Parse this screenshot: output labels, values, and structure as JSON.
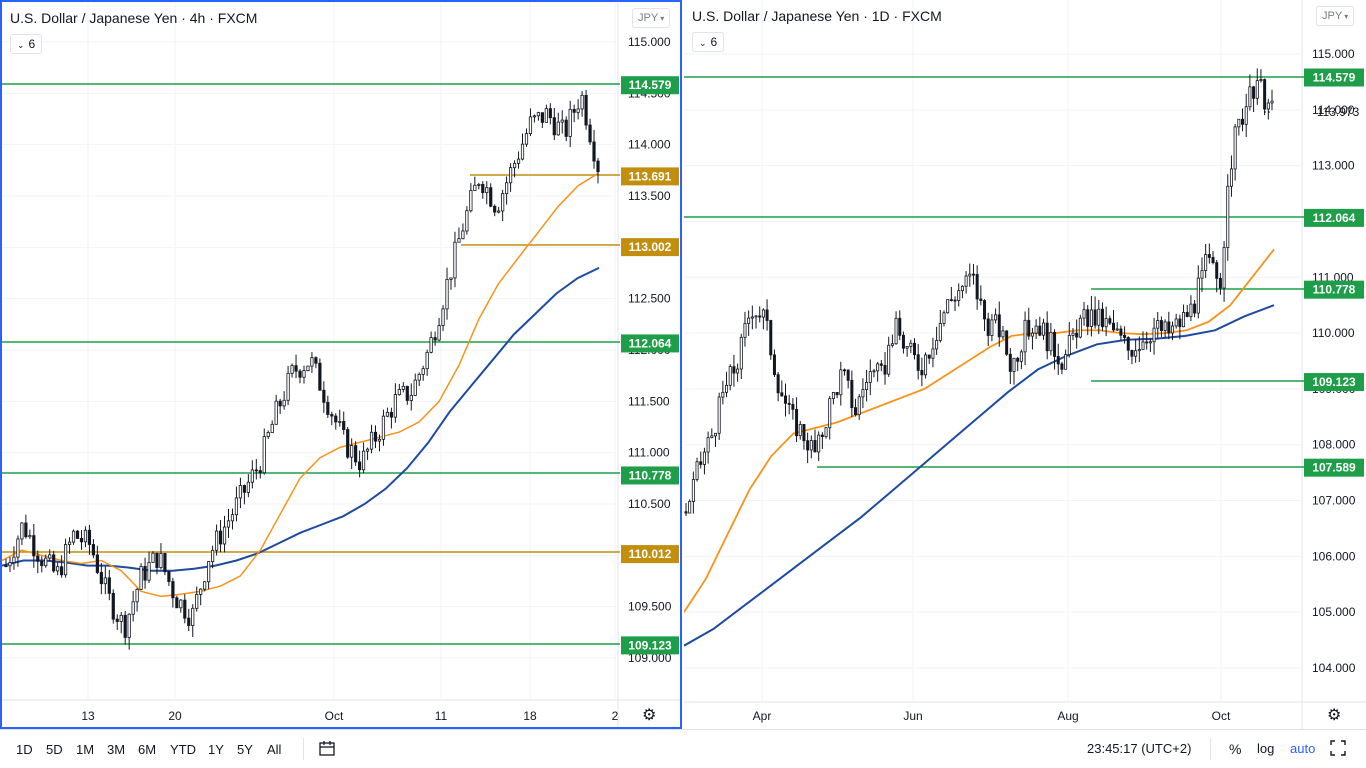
{
  "left_panel": {
    "title": "U.S. Dollar / Japanese Yen · 4h · FXCM",
    "indicator_count": "6",
    "currency": "JPY",
    "price_axis_labels": [
      "115.000",
      "114.500",
      "114.000",
      "113.500",
      "113.000",
      "112.500",
      "112.000",
      "111.500",
      "111.000",
      "110.500",
      "110.000",
      "109.500",
      "109.000"
    ],
    "time_axis_labels": [
      "13",
      "20",
      "Oct",
      "11",
      "18",
      "2"
    ],
    "level_tags": [
      {
        "label": "114.579",
        "color": "#1e9e48"
      },
      {
        "label": "113.691",
        "color": "#c28e0e"
      },
      {
        "label": "113.002",
        "color": "#c28e0e"
      },
      {
        "label": "112.064",
        "color": "#1e9e48"
      },
      {
        "label": "110.778",
        "color": "#1e9e48"
      },
      {
        "label": "110.012",
        "color": "#c28e0e"
      },
      {
        "label": "109.123",
        "color": "#1e9e48"
      }
    ]
  },
  "right_panel": {
    "title": "U.S. Dollar / Japanese Yen · 1D · FXCM",
    "indicator_count": "6",
    "currency": "JPY",
    "price_axis_labels": [
      "115.000",
      "114.000",
      "113.000",
      "112.000",
      "111.000",
      "110.000",
      "109.000",
      "108.000",
      "107.000",
      "106.000",
      "105.000",
      "104.000"
    ],
    "time_axis_labels": [
      "Apr",
      "Jun",
      "Aug",
      "Oct"
    ],
    "last_price": "113.973",
    "level_tags": [
      {
        "label": "114.579",
        "color": "#1e9e48"
      },
      {
        "label": "112.064",
        "color": "#1e9e48"
      },
      {
        "label": "110.778",
        "color": "#1e9e48"
      },
      {
        "label": "109.123",
        "color": "#1e9e48"
      },
      {
        "label": "107.589",
        "color": "#1e9e48"
      }
    ]
  },
  "toolbar": {
    "timeframes": [
      "1D",
      "5D",
      "1M",
      "3M",
      "6M",
      "YTD",
      "1Y",
      "5Y",
      "All"
    ],
    "clock": "23:45:17 (UTC+2)",
    "percent": "%",
    "log": "log",
    "auto": "auto"
  },
  "colors": {
    "green_level": "#1e9e48",
    "gold_level": "#c28e0e",
    "ma_fast": "#f7931a",
    "ma_slow": "#1c4ba0",
    "accent": "#2962ff"
  },
  "chart_data": [
    {
      "type": "line",
      "title": "U.S. Dollar / Japanese Yen · 4h · FXCM",
      "ylim": [
        108.5,
        115.45
      ],
      "x_ticks": [
        "13",
        "20",
        "Oct",
        "11",
        "18",
        "2"
      ],
      "series": [
        {
          "values": [
            109.9,
            110.3,
            110.0,
            109.8,
            110.2,
            110.1,
            109.6,
            109.3,
            109.8,
            110.0,
            109.6,
            109.4,
            110.0,
            110.3,
            110.6,
            110.9,
            111.4,
            111.8,
            111.9,
            111.5,
            111.1,
            110.9,
            111.2,
            111.5,
            111.6,
            112.0,
            112.6,
            113.2,
            113.7,
            113.4,
            113.8,
            114.2,
            114.3,
            114.1,
            114.5,
            113.8
          ]
        },
        {
          "values": [
            109.95,
            110.05,
            110.0,
            109.95,
            109.92,
            109.95,
            109.85,
            109.65,
            109.6,
            109.62,
            109.65,
            109.7,
            109.8,
            110.05,
            110.4,
            110.75,
            110.95,
            111.05,
            111.1,
            111.15,
            111.2,
            111.3,
            111.5,
            111.85,
            112.3,
            112.65,
            112.9,
            113.15,
            113.4,
            113.6,
            113.72
          ]
        },
        {
          "values": [
            109.9,
            109.95,
            109.95,
            109.93,
            109.9,
            109.9,
            109.88,
            109.85,
            109.85,
            109.87,
            109.9,
            109.95,
            110.02,
            110.12,
            110.22,
            110.3,
            110.38,
            110.5,
            110.65,
            110.85,
            111.1,
            111.4,
            111.65,
            111.9,
            112.15,
            112.35,
            112.55,
            112.7,
            112.8
          ]
        }
      ]
    },
    {
      "type": "line",
      "title": "U.S. Dollar / Japanese Yen · 1D · FXCM",
      "ylim": [
        103.8,
        115.3
      ],
      "x_ticks": [
        "Apr",
        "Jun",
        "Aug",
        "Oct"
      ],
      "series": [
        {
          "values": [
            106.8,
            107.6,
            108.2,
            109.0,
            109.5,
            110.5,
            110.3,
            109.2,
            108.5,
            108.2,
            107.8,
            108.7,
            109.3,
            108.6,
            109.3,
            109.2,
            110.1,
            109.7,
            109.4,
            109.9,
            110.5,
            110.8,
            111.0,
            110.2,
            110.1,
            109.4,
            110.0,
            110.2,
            109.8,
            109.5,
            110.1,
            110.3,
            110.2,
            110.0,
            109.7,
            109.9,
            110.1,
            110.0,
            110.2,
            110.5,
            111.3,
            110.9,
            113.4,
            114.1,
            114.4,
            113.97
          ]
        },
        {
          "values": [
            105.0,
            105.6,
            106.4,
            107.2,
            107.8,
            108.2,
            108.3,
            108.4,
            108.55,
            108.7,
            108.85,
            109.0,
            109.25,
            109.5,
            109.75,
            109.95,
            110.0,
            110.0,
            110.05,
            110.05,
            110.0,
            109.98,
            110.0,
            110.05,
            110.2,
            110.5,
            111.0,
            111.5
          ]
        },
        {
          "values": [
            104.4,
            104.7,
            105.1,
            105.5,
            105.9,
            106.3,
            106.7,
            107.15,
            107.6,
            108.05,
            108.5,
            108.95,
            109.35,
            109.6,
            109.8,
            109.88,
            109.9,
            109.95,
            110.05,
            110.3,
            110.5
          ]
        }
      ]
    }
  ]
}
